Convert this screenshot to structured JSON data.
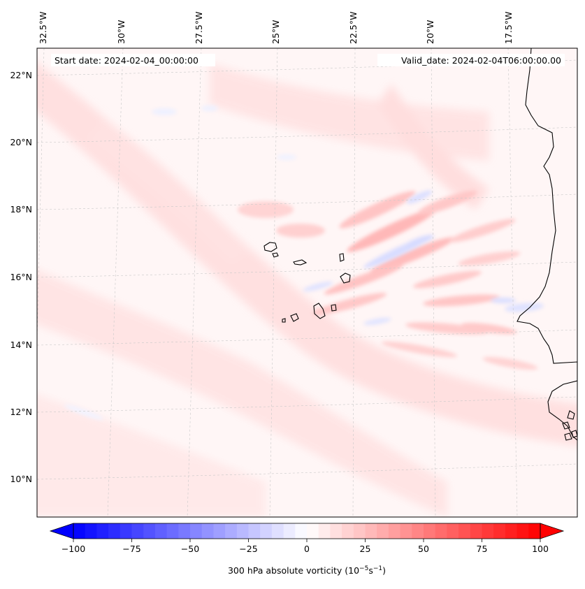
{
  "map": {
    "start_date": "Start date: 2024-02-04_00:00:00",
    "valid_date": "Valid_date: 2024-02-04T06:00:00.00",
    "lon_labels": [
      "32.5°W",
      "30°W",
      "27.5°W",
      "25°W",
      "22.5°W",
      "20°W",
      "17.5°W"
    ],
    "lat_labels": [
      "22°N",
      "20°N",
      "18°N",
      "16°N",
      "14°N",
      "12°N",
      "10°N"
    ],
    "field_colors": {
      "positive": "#ff0000",
      "negative": "#0000ff",
      "zero": "#ffffff"
    }
  },
  "colorbar": {
    "ticks": [
      "−100",
      "−75",
      "−50",
      "−25",
      "0",
      "25",
      "50",
      "75",
      "100"
    ],
    "tick_values": [
      -100,
      -75,
      -50,
      -25,
      0,
      25,
      50,
      75,
      100
    ],
    "range": [
      -100,
      100
    ],
    "label_main": "300 hPa absolute vorticity (10",
    "label_exp1": "−5",
    "label_mid": "s",
    "label_exp2": "−1",
    "label_end": ")"
  }
}
